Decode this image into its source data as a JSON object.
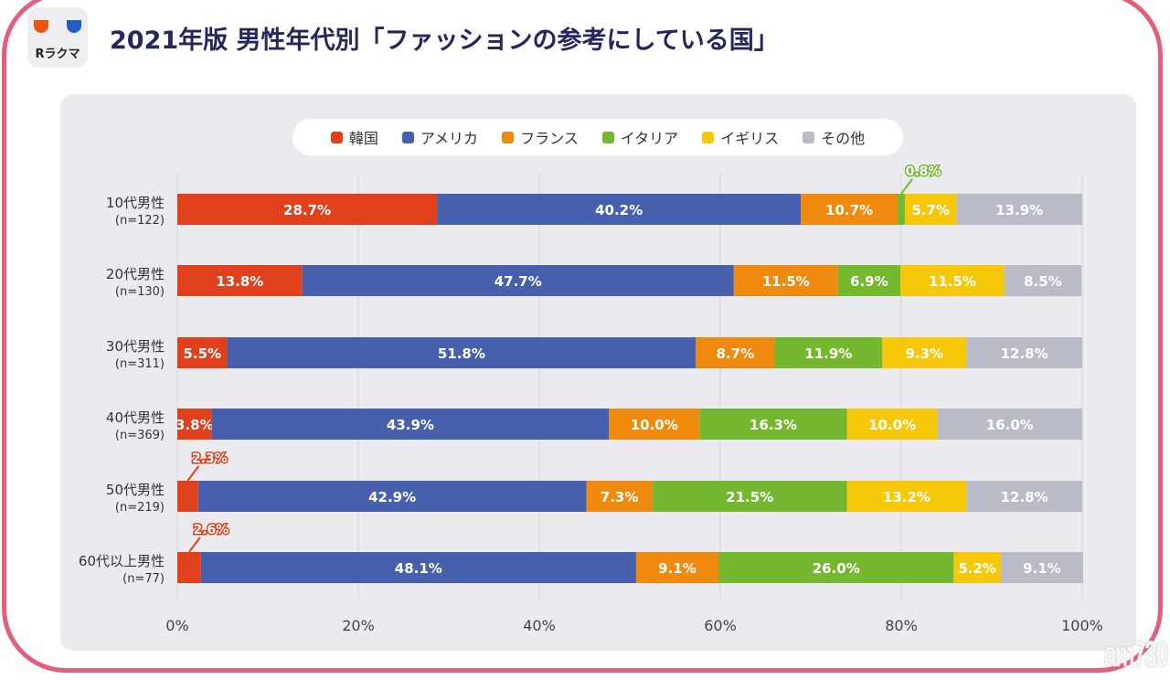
{
  "logo": {
    "text": "Rラクマ"
  },
  "title": "2021年版 男性年代別「ファッションの参考にしている国」",
  "watermark": "am730",
  "chart_data": {
    "type": "bar",
    "stacked": true,
    "orientation": "horizontal",
    "title": "2021年版 男性年代別「ファッションの参考にしている国」",
    "categories": [
      "10代男性",
      "20代男性",
      "30代男性",
      "40代男性",
      "50代男性",
      "60代以上男性"
    ],
    "sample_sizes": [
      "(n=122)",
      "(n=130)",
      "(n=311)",
      "(n=369)",
      "(n=219)",
      "(n=77)"
    ],
    "series": [
      {
        "name": "韓国",
        "color": "#e0411c",
        "values": [
          28.7,
          13.8,
          5.5,
          3.8,
          2.3,
          2.6
        ]
      },
      {
        "name": "アメリカ",
        "color": "#4660ad",
        "values": [
          40.2,
          47.7,
          51.8,
          43.9,
          42.9,
          48.1
        ]
      },
      {
        "name": "フランス",
        "color": "#f08a0f",
        "values": [
          10.7,
          11.5,
          8.7,
          10.0,
          7.3,
          9.1
        ]
      },
      {
        "name": "イタリア",
        "color": "#74b82f",
        "values": [
          0.8,
          6.9,
          11.9,
          16.3,
          21.5,
          26.0
        ]
      },
      {
        "name": "イギリス",
        "color": "#f7c80a",
        "values": [
          5.7,
          11.5,
          9.3,
          10.0,
          13.2,
          5.2
        ]
      },
      {
        "name": "その他",
        "color": "#b9bbc6",
        "values": [
          13.9,
          8.5,
          12.8,
          16.0,
          12.8,
          9.1
        ]
      }
    ],
    "xlim": [
      0,
      100
    ],
    "xticks": [
      "0%",
      "20%",
      "40%",
      "60%",
      "80%",
      "100%"
    ],
    "grid": true,
    "legend": "top-center",
    "unit": "%"
  }
}
